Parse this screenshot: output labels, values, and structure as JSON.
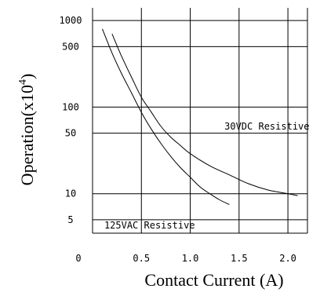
{
  "chart_data": {
    "type": "line",
    "title": "",
    "xlabel": "Contact Current (A)",
    "ylabel": "Operation(x10",
    "ylabel_sup": "4",
    "ylabel_close": ")",
    "xscale": "linear",
    "yscale": "log",
    "xlim": [
      0,
      2.2
    ],
    "ylim": [
      3.5,
      1400
    ],
    "grid": true,
    "x_ticks": [
      0,
      0.5,
      1.0,
      1.5,
      2.0
    ],
    "x_tick_labels": [
      "0",
      "0.5",
      "1.0",
      "1.5",
      "2.0"
    ],
    "y_ticks": [
      5,
      10,
      50,
      100,
      500,
      1000
    ],
    "y_tick_labels": [
      "5",
      "10",
      "50",
      "100",
      "500",
      "1000"
    ],
    "series": [
      {
        "name": "125VAC Resistive",
        "x": [
          0.1,
          0.2,
          0.3,
          0.4,
          0.5,
          0.6,
          0.7,
          0.8,
          0.9,
          1.0,
          1.1,
          1.2,
          1.3,
          1.4
        ],
        "y": [
          800,
          420,
          240,
          145,
          87,
          56,
          38,
          27,
          20,
          15.5,
          12,
          10,
          8.5,
          7.5
        ]
      },
      {
        "name": "30VDC Resistive",
        "x": [
          0.2,
          0.3,
          0.4,
          0.5,
          0.6,
          0.7,
          0.8,
          0.9,
          1.0,
          1.2,
          1.4,
          1.6,
          1.8,
          2.0,
          2.1
        ],
        "y": [
          700,
          380,
          220,
          130,
          88,
          60,
          45,
          36,
          29,
          21,
          16.5,
          13,
          11,
          10,
          9.5
        ]
      }
    ],
    "annotations": [
      {
        "text": "30VDC Resistive",
        "x": 1.35,
        "y": 60
      },
      {
        "text": "125VAC Resistive",
        "x": 0.12,
        "y": 4.3
      }
    ]
  }
}
